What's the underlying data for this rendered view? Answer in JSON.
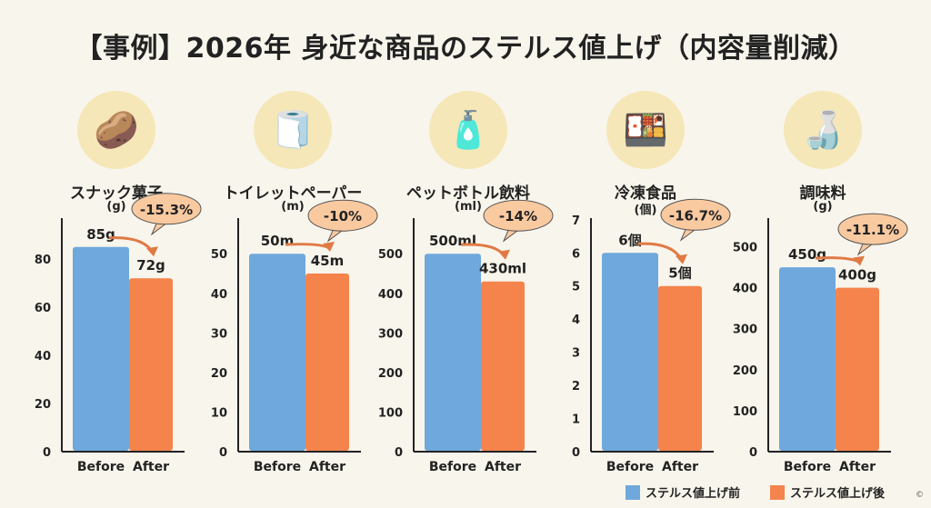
{
  "title": "【事例】2026年 身近な商品のステルス値上げ（内容量削減）",
  "colors": {
    "before": "#6fa8dc",
    "after": "#f4844c",
    "bubble": "#f9c9a0",
    "background": "#f8f5ec"
  },
  "legend": {
    "before": "ステルス値上げ前",
    "after": "ステルス値上げ後"
  },
  "copyright": "©",
  "chart_data": [
    {
      "type": "bar",
      "title": "スナック菓子",
      "unit": "(g)",
      "icon": "snack-bag-icon",
      "categories": [
        "Before",
        "After"
      ],
      "values": [
        85,
        72
      ],
      "value_labels": [
        "85g",
        "72g"
      ],
      "change": "-15.3%",
      "yticks": [
        0,
        20,
        40,
        60,
        80
      ],
      "ylim": [
        0,
        97
      ]
    },
    {
      "type": "bar",
      "title": "トイレットペーパー",
      "unit": "(m)",
      "icon": "toilet-paper-icon",
      "categories": [
        "Before",
        "After"
      ],
      "values": [
        50,
        45
      ],
      "value_labels": [
        "50m",
        "45m"
      ],
      "change": "-10%",
      "yticks": [
        0,
        10,
        20,
        30,
        40,
        50
      ],
      "ylim": [
        0,
        59
      ]
    },
    {
      "type": "bar",
      "title": "ペットボトル飲料",
      "unit": "(ml)",
      "icon": "plastic-bottle-icon",
      "categories": [
        "Before",
        "After"
      ],
      "values": [
        500,
        430
      ],
      "value_labels": [
        "500ml",
        "430ml"
      ],
      "change": "-14%",
      "yticks": [
        0,
        100,
        200,
        300,
        400,
        500
      ],
      "ylim": [
        0,
        590
      ]
    },
    {
      "type": "bar",
      "title": "冷凍食品",
      "unit": "(個)",
      "icon": "frozen-food-tray-icon",
      "categories": [
        "Before",
        "After"
      ],
      "values": [
        6,
        5
      ],
      "value_labels": [
        "6個",
        "5個"
      ],
      "change": "-16.7%",
      "yticks": [
        0,
        1,
        2,
        3,
        4,
        5,
        6,
        7
      ],
      "ylim": [
        0,
        7.05
      ]
    },
    {
      "type": "bar",
      "title": "調味料",
      "unit": "(g)",
      "icon": "mayonnaise-bottle-icon",
      "categories": [
        "Before",
        "After"
      ],
      "values": [
        450,
        400
      ],
      "value_labels": [
        "450g",
        "400g"
      ],
      "change": "-11.1%",
      "yticks": [
        0,
        100,
        200,
        300,
        400,
        500
      ],
      "ylim": [
        0,
        570
      ]
    }
  ]
}
